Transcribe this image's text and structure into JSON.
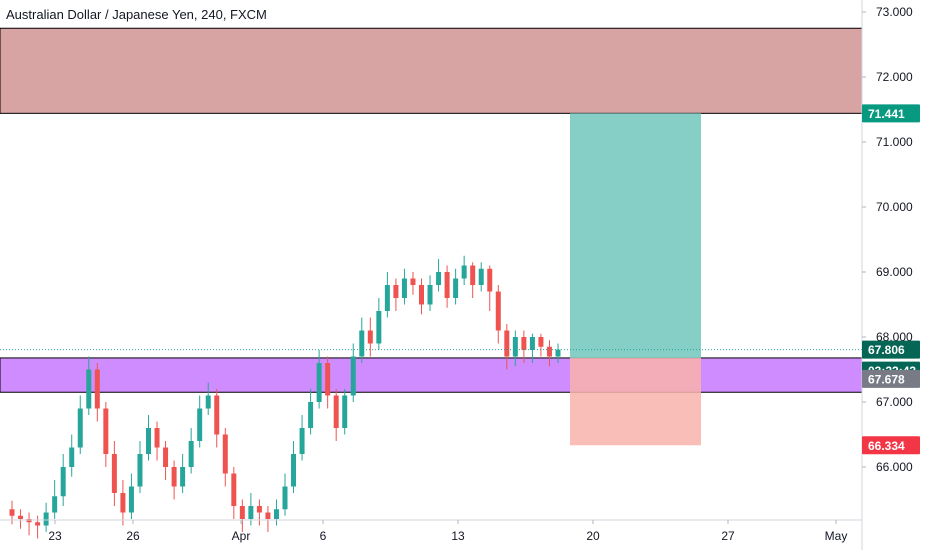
{
  "title": "Australian Dollar / Japanese Yen, 240, FXCM",
  "colors": {
    "background": "#ffffff",
    "up": "#26a69a",
    "down": "#ef5350",
    "resistance_zone": "#d8a3a3",
    "support_zone": "#cf8cff",
    "target_zone": "#85cfc6",
    "stop_zone": "#f9b3ad",
    "axis_text": "#131722",
    "last_price_line": "#26a69a"
  },
  "price_axis": {
    "ticks": [
      "73.000",
      "72.000",
      "71.000",
      "70.000",
      "69.000",
      "68.000",
      "67.000",
      "66.000"
    ]
  },
  "time_axis": {
    "ticks": [
      "23",
      "26",
      "Apr",
      "6",
      "13",
      "20",
      "27",
      "May"
    ]
  },
  "price_labels": {
    "target": "71.441",
    "last": "67.806",
    "countdown": "03:22:43",
    "entry": "67.678",
    "stop": "66.334"
  },
  "chart_data": {
    "type": "candlestick",
    "symbol": "Australian Dollar / Japanese Yen",
    "interval": "240",
    "source": "FXCM",
    "ylim": [
      65.0,
      73.2
    ],
    "x_dates": [
      "23",
      "26",
      "Apr",
      "6",
      "13",
      "20",
      "27",
      "May"
    ],
    "candles": [
      [
        65.35,
        65.25,
        65.48,
        65.12
      ],
      [
        65.25,
        65.2,
        65.35,
        65.05
      ],
      [
        65.2,
        65.15,
        65.3,
        64.95
      ],
      [
        65.15,
        65.1,
        65.25,
        64.9
      ],
      [
        65.1,
        65.3,
        65.45,
        65.0
      ],
      [
        65.3,
        65.55,
        65.8,
        65.2
      ],
      [
        65.55,
        66.0,
        66.2,
        65.4
      ],
      [
        66.0,
        66.3,
        66.5,
        65.85
      ],
      [
        66.3,
        66.9,
        67.1,
        66.2
      ],
      [
        66.9,
        67.5,
        67.7,
        66.8
      ],
      [
        67.5,
        66.9,
        67.6,
        66.7
      ],
      [
        66.9,
        66.2,
        67.0,
        66.0
      ],
      [
        66.2,
        65.6,
        66.4,
        65.4
      ],
      [
        65.6,
        65.3,
        65.8,
        65.1
      ],
      [
        65.3,
        65.7,
        65.9,
        65.2
      ],
      [
        65.7,
        66.2,
        66.4,
        65.6
      ],
      [
        66.2,
        66.6,
        66.8,
        66.1
      ],
      [
        66.6,
        66.3,
        66.7,
        66.1
      ],
      [
        66.3,
        66.0,
        66.4,
        65.8
      ],
      [
        66.0,
        65.7,
        66.1,
        65.5
      ],
      [
        65.7,
        66.0,
        66.2,
        65.6
      ],
      [
        66.0,
        66.4,
        66.6,
        65.9
      ],
      [
        66.4,
        66.9,
        67.1,
        66.3
      ],
      [
        66.9,
        67.1,
        67.3,
        66.8
      ],
      [
        67.1,
        66.5,
        67.2,
        66.3
      ],
      [
        66.5,
        65.9,
        66.6,
        65.7
      ],
      [
        65.9,
        65.4,
        66.0,
        65.2
      ],
      [
        65.4,
        65.2,
        65.5,
        65.0
      ],
      [
        65.2,
        65.4,
        65.6,
        65.1
      ],
      [
        65.4,
        65.3,
        65.5,
        65.1
      ],
      [
        65.3,
        65.2,
        65.4,
        65.0
      ],
      [
        65.2,
        65.35,
        65.5,
        65.1
      ],
      [
        65.35,
        65.7,
        65.9,
        65.25
      ],
      [
        65.7,
        66.2,
        66.4,
        65.6
      ],
      [
        66.2,
        66.6,
        66.8,
        66.1
      ],
      [
        66.6,
        67.0,
        67.2,
        66.5
      ],
      [
        67.0,
        67.6,
        67.8,
        66.9
      ],
      [
        67.6,
        67.1,
        67.7,
        66.9
      ],
      [
        67.1,
        66.6,
        67.2,
        66.4
      ],
      [
        66.6,
        67.1,
        67.2,
        66.5
      ],
      [
        67.1,
        67.7,
        67.9,
        67.0
      ],
      [
        67.7,
        68.1,
        68.3,
        67.6
      ],
      [
        68.1,
        67.9,
        68.3,
        67.7
      ],
      [
        67.9,
        68.4,
        68.6,
        67.8
      ],
      [
        68.4,
        68.8,
        69.0,
        68.3
      ],
      [
        68.8,
        68.6,
        68.9,
        68.4
      ],
      [
        68.6,
        68.9,
        69.05,
        68.5
      ],
      [
        68.9,
        68.8,
        69.0,
        68.65
      ],
      [
        68.8,
        68.5,
        68.9,
        68.35
      ],
      [
        68.5,
        68.8,
        68.95,
        68.4
      ],
      [
        68.8,
        69.0,
        69.2,
        68.7
      ],
      [
        69.0,
        68.6,
        69.1,
        68.45
      ],
      [
        68.6,
        68.9,
        69.05,
        68.5
      ],
      [
        68.9,
        69.1,
        69.25,
        68.8
      ],
      [
        69.1,
        68.8,
        69.15,
        68.6
      ],
      [
        68.8,
        69.05,
        69.15,
        68.7
      ],
      [
        69.05,
        68.7,
        69.1,
        68.4
      ],
      [
        68.7,
        68.1,
        68.8,
        67.9
      ],
      [
        68.1,
        67.7,
        68.2,
        67.5
      ],
      [
        67.7,
        68.0,
        68.1,
        67.55
      ],
      [
        68.0,
        67.8,
        68.1,
        67.6
      ],
      [
        67.8,
        68.0,
        68.05,
        67.6
      ],
      [
        68.0,
        67.85,
        68.05,
        67.7
      ],
      [
        67.85,
        67.7,
        67.95,
        67.55
      ],
      [
        67.7,
        67.806,
        67.9,
        67.6
      ]
    ],
    "zones": {
      "resistance": {
        "from": 71.441,
        "to": 72.75
      },
      "support": {
        "from": 67.15,
        "to": 67.678
      },
      "long_position": {
        "entry": 67.678,
        "target": 71.441,
        "stop": 66.334
      }
    },
    "last_price": 67.806,
    "grid": false
  }
}
